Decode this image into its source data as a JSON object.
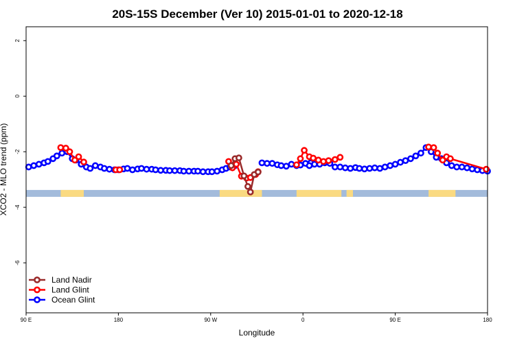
{
  "chart_data": {
    "type": "line",
    "title": "20S-15S December (Ver 10)   2015-01-01 to 2020-12-18",
    "xlabel": "Longitude",
    "ylabel": "XCO2 - MLO trend (ppm)",
    "xlim": [
      90,
      450
    ],
    "ylim": [
      -7.8,
      2.5
    ],
    "x_ticks": [
      {
        "value": 90,
        "label": "90 E"
      },
      {
        "value": 162,
        "label": "180"
      },
      {
        "value": 234,
        "label": "90 W"
      },
      {
        "value": 306,
        "label": "0"
      },
      {
        "value": 378,
        "label": "90 E"
      },
      {
        "value": 450,
        "label": "180"
      }
    ],
    "y_ticks": [
      {
        "value": 2,
        "label": "2"
      },
      {
        "value": 0,
        "label": "0"
      },
      {
        "value": -2,
        "label": "-2"
      },
      {
        "value": -4,
        "label": "-4"
      },
      {
        "value": -6,
        "label": "-6"
      }
    ],
    "grid": false,
    "legend_position": "bottom-left",
    "land_mask": {
      "y": -3.5,
      "ocean_color": "#a3bbdb",
      "land_color": "#fada81",
      "land_ranges": [
        [
          117,
          135
        ],
        [
          241,
          274
        ],
        [
          301,
          336
        ],
        [
          340,
          345
        ],
        [
          404,
          425
        ]
      ]
    },
    "series": [
      {
        "name": "Land Nadir",
        "color": "#9a2a2a",
        "segments": [
          {
            "x": [
              250,
              253,
              256,
              260,
              263,
              265,
              268,
              271
            ],
            "y": [
              -2.5,
              -2.25,
              -2.22,
              -2.87,
              -3.25,
              -3.45,
              -2.82,
              -2.73
            ]
          }
        ]
      },
      {
        "name": "Land Glint",
        "color": "#ff0000",
        "segments": [
          {
            "x": [
              117,
              121,
              124,
              128,
              131,
              135
            ],
            "y": [
              -1.85,
              -1.87,
              -2.0,
              -2.3,
              -2.18,
              -2.37
            ]
          },
          {
            "x": [
              160,
              163
            ],
            "y": [
              -2.65,
              -2.65
            ]
          },
          {
            "x": [
              248,
              251,
              254,
              258,
              262,
              265,
              269,
              271
            ],
            "y": [
              -2.35,
              -2.58,
              -2.45,
              -2.88,
              -2.95,
              -2.93,
              -2.82,
              -2.72
            ]
          },
          {
            "x": [
              301,
              304,
              307,
              311,
              314,
              318,
              322,
              326,
              331,
              335
            ],
            "y": [
              -2.47,
              -2.25,
              -1.95,
              -2.18,
              -2.23,
              -2.3,
              -2.35,
              -2.32,
              -2.28,
              -2.2
            ]
          },
          {
            "x": [
              404,
              408,
              411,
              415,
              418,
              421,
              449
            ],
            "y": [
              -1.83,
              -1.85,
              -2.05,
              -2.3,
              -2.18,
              -2.25,
              -2.63
            ]
          }
        ]
      },
      {
        "name": "Ocean Glint",
        "color": "#0000ff",
        "segments": [
          {
            "x": [
              92,
              96,
              100,
              104,
              107,
              111,
              114,
              118,
              122,
              126,
              129,
              133,
              137,
              140,
              144,
              148,
              151,
              155,
              159,
              162,
              166,
              169,
              173,
              177,
              180,
              184,
              188,
              191,
              195,
              199,
              202,
              206,
              210,
              213,
              217,
              221,
              224,
              228,
              232,
              235,
              239,
              243,
              246,
              249,
              253
            ],
            "y": [
              -2.55,
              -2.5,
              -2.45,
              -2.4,
              -2.35,
              -2.25,
              -2.15,
              -2.05,
              -2.0,
              -2.25,
              -2.3,
              -2.45,
              -2.55,
              -2.6,
              -2.5,
              -2.55,
              -2.6,
              -2.63,
              -2.65,
              -2.65,
              -2.62,
              -2.6,
              -2.65,
              -2.62,
              -2.6,
              -2.63,
              -2.63,
              -2.65,
              -2.67,
              -2.67,
              -2.68,
              -2.68,
              -2.68,
              -2.7,
              -2.7,
              -2.7,
              -2.7,
              -2.72,
              -2.72,
              -2.72,
              -2.7,
              -2.65,
              -2.6,
              -2.55,
              -2.5
            ]
          },
          {
            "x": [
              274,
              278,
              282,
              286,
              289,
              293,
              297,
              301,
              304,
              308,
              312
            ],
            "y": [
              -2.4,
              -2.42,
              -2.42,
              -2.47,
              -2.5,
              -2.52,
              -2.45,
              -2.5,
              -2.48,
              -2.42,
              -2.4
            ]
          },
          {
            "x": [
              311,
              315,
              319,
              323,
              327,
              331,
              335,
              339,
              343,
              347,
              350,
              354,
              358,
              362,
              366,
              370,
              374,
              378,
              382,
              386,
              390,
              394,
              398,
              402,
              406,
              410,
              414,
              418,
              422,
              426,
              430,
              434,
              438,
              442,
              446,
              450
            ],
            "y": [
              -2.5,
              -2.45,
              -2.45,
              -2.4,
              -2.42,
              -2.55,
              -2.55,
              -2.58,
              -2.6,
              -2.57,
              -2.6,
              -2.62,
              -2.6,
              -2.58,
              -2.6,
              -2.55,
              -2.5,
              -2.45,
              -2.38,
              -2.32,
              -2.25,
              -2.15,
              -2.05,
              -1.85,
              -2.0,
              -2.2,
              -2.25,
              -2.4,
              -2.5,
              -2.55,
              -2.55,
              -2.58,
              -2.62,
              -2.65,
              -2.68,
              -2.7
            ]
          }
        ]
      }
    ]
  }
}
